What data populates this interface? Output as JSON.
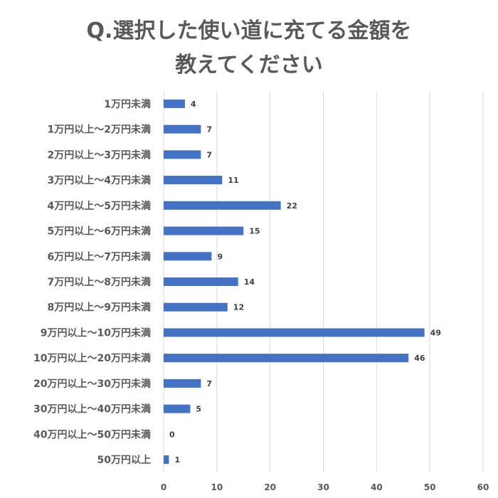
{
  "chart_data": {
    "type": "bar",
    "orientation": "horizontal",
    "title_lines": [
      "Q.選択した使い道に充てる金額を",
      "教えてください"
    ],
    "categories": [
      "1万円未満",
      "1万円以上～2万円未満",
      "2万円以上～3万円未満",
      "3万円以上～4万円未満",
      "4万円以上～5万円未満",
      "5万円以上～6万円未満",
      "6万円以上～7万円未満",
      "7万円以上～8万円未満",
      "8万円以上～9万円未満",
      "9万円以上～10万円未満",
      "10万円以上～20万円未満",
      "20万円以上～30万円未満",
      "30万円以上～40万円未満",
      "40万円以上～50万円未満",
      "50万円以上"
    ],
    "values": [
      4,
      7,
      7,
      11,
      22,
      15,
      9,
      14,
      12,
      49,
      46,
      7,
      5,
      0,
      1
    ],
    "xlim": [
      0,
      60
    ],
    "xticks": [
      "0",
      "10",
      "20",
      "30",
      "40",
      "50",
      "60"
    ],
    "xlabel": "",
    "ylabel": "",
    "grid": "vertical",
    "legend": "none",
    "bar_color": "#4472C4",
    "text_color": "#595959"
  }
}
